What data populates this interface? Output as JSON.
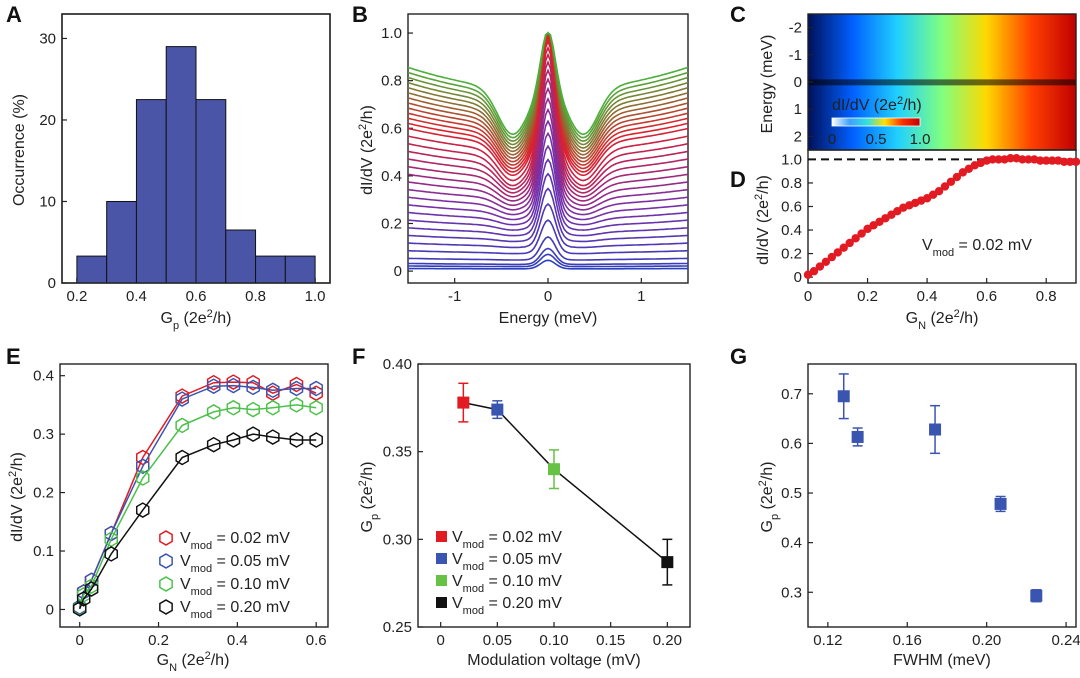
{
  "panels": {
    "A": {
      "letter": "A",
      "chart_data": {
        "type": "bar",
        "title": "",
        "xlabel_main": "G",
        "xlabel_sub": "p",
        "xlabel_unit": " (2e",
        "xlabel_sup": "2",
        "xlabel_end": "/h)",
        "ylabel": "Occurrence (%)",
        "bin_edges": [
          0.2,
          0.3,
          0.4,
          0.5,
          0.6,
          0.7,
          0.8,
          0.9,
          1.0
        ],
        "values": [
          3.3,
          10,
          22.5,
          29,
          22.5,
          6.5,
          3.3,
          3.3
        ],
        "xlim": [
          0.15,
          1.05
        ],
        "ylim": [
          0,
          33
        ],
        "xticks": [
          0.2,
          0.4,
          0.6,
          0.8,
          1.0
        ],
        "xticklabels": [
          "0.2",
          "0.4",
          "0.6",
          "0.8",
          "1.0"
        ],
        "yticks": [
          0,
          10,
          20,
          30
        ],
        "yticklabels": [
          "0",
          "10",
          "20",
          "30"
        ],
        "bar_color": "#4b55a8"
      }
    },
    "B": {
      "letter": "B",
      "chart_data": {
        "type": "line",
        "xlabel": "Energy (meV)",
        "ylabel_main": "dI/dV (2e",
        "ylabel_sup": "2",
        "ylabel_end": "/h)",
        "xlim": [
          -1.5,
          1.5
        ],
        "ylim": [
          -0.05,
          1.08
        ],
        "xticks": [
          -1,
          0,
          1
        ],
        "xticklabels": [
          "-1",
          "0",
          "1"
        ],
        "yticks": [
          0,
          0.2,
          0.4,
          0.6,
          0.8,
          1.0
        ],
        "yticklabels": [
          "0",
          "0.2",
          "0.4",
          "0.6",
          "0.8",
          "1.0"
        ],
        "description_series": "family of conductance curves; peak value 1.0 at zero energy for the highest-transmission traces",
        "series_background_levels": [
          0.01,
          0.02,
          0.03,
          0.05,
          0.08,
          0.11,
          0.14,
          0.17,
          0.2,
          0.23,
          0.26,
          0.29,
          0.32,
          0.35,
          0.38,
          0.41,
          0.44,
          0.47,
          0.5,
          0.53,
          0.56,
          0.58,
          0.6,
          0.62,
          0.64,
          0.66,
          0.68,
          0.7,
          0.72,
          0.74,
          0.76,
          0.78,
          0.8
        ],
        "colors": [
          "#2a3fbf",
          "#7a2fa8",
          "#e01f2a",
          "#4caf3a"
        ]
      }
    },
    "C": {
      "letter": "C",
      "chart_data": {
        "type": "heatmap",
        "ylabel": "Energy (meV)",
        "ylim": [
          2.5,
          -2.5
        ],
        "yticks": [
          -2,
          -1,
          0,
          1,
          2
        ],
        "yticklabels": [
          "-2",
          "-1",
          "0",
          "1",
          "2"
        ],
        "colorbar_label_main": "dI/dV (2e",
        "colorbar_label_sup": "2",
        "colorbar_label_end": "/h)",
        "colorbar_ticks": [
          "0",
          "0.5",
          "1.0"
        ],
        "colormap": [
          "#00008f",
          "#0050ff",
          "#00e0ff",
          "#80ff70",
          "#ffe000",
          "#ff5000",
          "#c00000"
        ]
      }
    },
    "D": {
      "letter": "D",
      "chart_data": {
        "type": "scatter",
        "xlabel_main": "G",
        "xlabel_sub": "N",
        "xlabel_unit": " (2e",
        "xlabel_sup": "2",
        "xlabel_end": "/h)",
        "ylabel_main": "dI/dV (2e",
        "ylabel_sup": "2",
        "ylabel_end": "/h)",
        "annotation_main": "V",
        "annotation_sub": "mod",
        "annotation_end": " = 0.02 mV",
        "xlim": [
          0,
          0.9
        ],
        "ylim": [
          -0.05,
          1.08
        ],
        "xticks": [
          0,
          0.2,
          0.4,
          0.6,
          0.8
        ],
        "xticklabels": [
          "0",
          "0.2",
          "0.4",
          "0.6",
          "0.8"
        ],
        "yticks": [
          0,
          0.2,
          0.4,
          0.6,
          0.8,
          1.0
        ],
        "yticklabels": [
          "0",
          "0.2",
          "0.4",
          "0.6",
          "0.8",
          "1.0"
        ],
        "dashed_line_y": 1.0,
        "x": [
          0,
          0.02,
          0.04,
          0.06,
          0.08,
          0.1,
          0.12,
          0.14,
          0.16,
          0.18,
          0.2,
          0.22,
          0.24,
          0.26,
          0.28,
          0.3,
          0.32,
          0.34,
          0.36,
          0.38,
          0.4,
          0.42,
          0.44,
          0.46,
          0.48,
          0.5,
          0.52,
          0.54,
          0.56,
          0.58,
          0.6,
          0.62,
          0.64,
          0.66,
          0.68,
          0.7,
          0.72,
          0.74,
          0.76,
          0.78,
          0.8,
          0.82,
          0.84,
          0.86,
          0.88,
          0.9
        ],
        "y": [
          0.02,
          0.05,
          0.09,
          0.13,
          0.17,
          0.21,
          0.25,
          0.29,
          0.33,
          0.37,
          0.41,
          0.44,
          0.47,
          0.5,
          0.53,
          0.56,
          0.59,
          0.61,
          0.63,
          0.65,
          0.67,
          0.7,
          0.73,
          0.77,
          0.81,
          0.85,
          0.89,
          0.92,
          0.95,
          0.97,
          0.99,
          1.0,
          1.0,
          1.0,
          1.01,
          1.01,
          1.0,
          1.0,
          1.0,
          0.99,
          0.99,
          0.99,
          0.99,
          0.98,
          0.98,
          0.98
        ],
        "color": "#e21b23"
      }
    },
    "E": {
      "letter": "E",
      "chart_data": {
        "type": "line",
        "xlabel_main": "G",
        "xlabel_sub": "N",
        "xlabel_unit": " (2e",
        "xlabel_sup": "2",
        "xlabel_end": "/h)",
        "ylabel_main": "dI/dV (2e",
        "ylabel_sup": "2",
        "ylabel_end": "/h)",
        "xlim": [
          -0.05,
          0.63
        ],
        "ylim": [
          -0.03,
          0.42
        ],
        "xticks": [
          0,
          0.2,
          0.4,
          0.6
        ],
        "xticklabels": [
          "0",
          "0.2",
          "0.4",
          "0.6"
        ],
        "yticks": [
          0,
          0.1,
          0.2,
          0.3,
          0.4
        ],
        "yticklabels": [
          "0",
          "0.1",
          "0.2",
          "0.3",
          "0.4"
        ],
        "x": [
          0,
          0.01,
          0.03,
          0.08,
          0.16,
          0.26,
          0.34,
          0.39,
          0.44,
          0.49,
          0.55,
          0.6
        ],
        "series": [
          {
            "name_main": "V",
            "name_sub": "mod",
            "name_end": " = 0.02 mV",
            "color": "#e21b23",
            "values": [
              0.003,
              0.03,
              0.05,
              0.13,
              0.26,
              0.365,
              0.388,
              0.389,
              0.388,
              0.37,
              0.385,
              0.37
            ]
          },
          {
            "name_main": "V",
            "name_sub": "mod",
            "name_end": " = 0.05 mV",
            "color": "#3a55b0",
            "values": [
              0.004,
              0.03,
              0.05,
              0.13,
              0.245,
              0.36,
              0.382,
              0.383,
              0.38,
              0.375,
              0.378,
              0.378
            ]
          },
          {
            "name_main": "V",
            "name_sub": "mod",
            "name_end": " = 0.10 mV",
            "color": "#4cc14a",
            "values": [
              0.002,
              0.025,
              0.04,
              0.12,
              0.225,
              0.315,
              0.338,
              0.345,
              0.342,
              0.345,
              0.35,
              0.345
            ]
          },
          {
            "name_main": "V",
            "name_sub": "mod",
            "name_end": " = 0.20 mV",
            "color": "#111111",
            "values": [
              0.001,
              0.018,
              0.035,
              0.095,
              0.17,
              0.26,
              0.282,
              0.29,
              0.3,
              0.295,
              0.29,
              0.29
            ]
          }
        ]
      }
    },
    "F": {
      "letter": "F",
      "chart_data": {
        "type": "scatter",
        "xlabel": "Modulation voltage (mV)",
        "ylabel_main": "G",
        "ylabel_sub": "p",
        "ylabel_unit": " (2e",
        "ylabel_sup": "2",
        "ylabel_end": "/h)",
        "xlim": [
          -0.02,
          0.22
        ],
        "ylim": [
          0.25,
          0.4
        ],
        "xticks": [
          0,
          0.05,
          0.1,
          0.15,
          0.2
        ],
        "xticklabels": [
          "0",
          "0.05",
          "0.10",
          "0.15",
          "0.20"
        ],
        "yticks": [
          0.25,
          0.3,
          0.35,
          0.4
        ],
        "yticklabels": [
          "0.25",
          "0.30",
          "0.35",
          "0.40"
        ],
        "points": [
          {
            "x": 0.02,
            "y": 0.378,
            "err": 0.011,
            "color": "#e21b23",
            "label_main": "V",
            "label_sub": "mod",
            "label_end": " = 0.02 mV"
          },
          {
            "x": 0.05,
            "y": 0.374,
            "err": 0.005,
            "color": "#3a55b0",
            "label_main": "V",
            "label_sub": "mod",
            "label_end": " = 0.05 mV"
          },
          {
            "x": 0.1,
            "y": 0.34,
            "err": 0.011,
            "color": "#66c144",
            "label_main": "V",
            "label_sub": "mod",
            "label_end": " = 0.10 mV"
          },
          {
            "x": 0.2,
            "y": 0.287,
            "err": 0.013,
            "color": "#111111",
            "label_main": "V",
            "label_sub": "mod",
            "label_end": " = 0.20 mV"
          }
        ]
      }
    },
    "G": {
      "letter": "G",
      "chart_data": {
        "type": "scatter",
        "xlabel": "FWHM (meV)",
        "ylabel_main": "G",
        "ylabel_sub": "p",
        "ylabel_unit": " (2e",
        "ylabel_sup": "2",
        "ylabel_end": "/h)",
        "xlim": [
          0.11,
          0.245
        ],
        "ylim": [
          0.23,
          0.76
        ],
        "xticks": [
          0.12,
          0.16,
          0.2,
          0.24
        ],
        "xticklabels": [
          "0.12",
          "0.16",
          "0.20",
          "0.24"
        ],
        "yticks": [
          0.3,
          0.4,
          0.5,
          0.6,
          0.7
        ],
        "yticklabels": [
          "0.3",
          "0.4",
          "0.5",
          "0.6",
          "0.7"
        ],
        "x": [
          0.128,
          0.135,
          0.174,
          0.207,
          0.225
        ],
        "y": [
          0.695,
          0.613,
          0.628,
          0.478,
          0.293
        ],
        "err": [
          0.045,
          0.018,
          0.048,
          0.015,
          0.012
        ],
        "color": "#3a55b0"
      }
    }
  }
}
